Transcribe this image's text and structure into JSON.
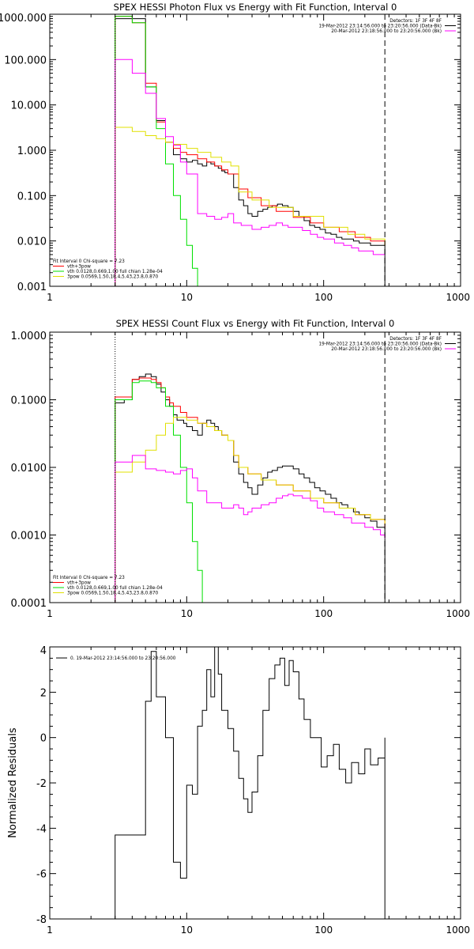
{
  "chart_data": [
    {
      "type": "line",
      "title": "SPEX HESSI Photon Flux vs Energy with Fit Function, Interval 0",
      "xscale": "log",
      "yscale": "log",
      "xlim": [
        1,
        1000
      ],
      "ylim": [
        0.001,
        1000
      ],
      "x_ticks": [
        "1",
        "10",
        "100",
        "1000"
      ],
      "y_ticks": [
        "0.001",
        "0.010",
        "0.100",
        "1.000",
        "10.000",
        "100.000",
        "1000.000"
      ],
      "vlines": [
        {
          "x": 3,
          "style": "dotted"
        },
        {
          "x": 280,
          "style": "dashed"
        }
      ],
      "info": [
        "Detectors: 1F 3F 4F 8F",
        "19-Mar-2012 23:14:56.000 to 23:20:56.000 (Data-Bk)",
        "20-Mar-2012 23:18:56.000 to 23:20:56.000 (Bk)"
      ],
      "legend_title": "Fit Interval 0   Chi-square = 7.23",
      "legend_entries": [
        "vth+3pow",
        "vth 0.0128,0.669,1.00  full chian 1.28e-04",
        "3pow 0.0569,1.50,18.4,5.43,23.8,0.870"
      ],
      "colors": {
        "data": "#000000",
        "total": "#ff0000",
        "vth": "#00e000",
        "pow": "#e0e000",
        "bk": "#ff00ff"
      },
      "series": [
        {
          "name": "19-Mar-2012 23:14:56.000 to 23:20:56.000 (Data-Bk)",
          "x": [
            3,
            4,
            5,
            6,
            7,
            8,
            9,
            10,
            11,
            12,
            13,
            14,
            15,
            16,
            17,
            18,
            19,
            20,
            22,
            24,
            26,
            28,
            30,
            33,
            36,
            39,
            42,
            46,
            50,
            55,
            60,
            66,
            72,
            79,
            86,
            94,
            103,
            113,
            124,
            136,
            150,
            165,
            182,
            200,
            220,
            245,
            280
          ],
          "y": [
            800,
            800,
            25,
            4.5,
            1.5,
            0.8,
            0.65,
            0.55,
            0.6,
            0.5,
            0.45,
            0.55,
            0.5,
            0.45,
            0.4,
            0.35,
            0.32,
            0.3,
            0.15,
            0.08,
            0.06,
            0.04,
            0.035,
            0.045,
            0.05,
            0.055,
            0.06,
            0.065,
            0.06,
            0.055,
            0.045,
            0.035,
            0.028,
            0.022,
            0.02,
            0.018,
            0.015,
            0.014,
            0.012,
            0.011,
            0.011,
            0.01,
            0.009,
            0.009,
            0.008,
            0.008,
            0.008
          ]
        },
        {
          "name": "vth+3pow",
          "x": [
            3,
            4,
            5,
            6,
            7,
            8,
            9,
            10,
            12,
            14,
            16,
            18,
            20,
            24,
            28,
            35,
            45,
            60,
            80,
            100,
            130,
            170,
            220,
            280
          ],
          "y": [
            900,
            650,
            30,
            4.2,
            1.5,
            1.1,
            0.9,
            0.8,
            0.65,
            0.55,
            0.45,
            0.37,
            0.3,
            0.14,
            0.09,
            0.06,
            0.045,
            0.033,
            0.025,
            0.02,
            0.016,
            0.012,
            0.01,
            0.008
          ]
        },
        {
          "name": "vth 0.0128,0.669,1.00",
          "x": [
            3,
            4,
            5,
            6,
            7,
            8,
            9,
            10,
            11,
            12
          ],
          "y": [
            900,
            650,
            25,
            3.0,
            0.5,
            0.1,
            0.03,
            0.008,
            0.0025,
            0.0008
          ]
        },
        {
          "name": "3pow 0.0569,1.50,18.4,5.43,23.8,0.870",
          "x": [
            3,
            4,
            5,
            6,
            7,
            8,
            10,
            12,
            15,
            18,
            21,
            24,
            30,
            40,
            60,
            100,
            150,
            200,
            280
          ],
          "y": [
            3.2,
            2.6,
            2.1,
            1.8,
            1.5,
            1.35,
            1.1,
            0.9,
            0.7,
            0.55,
            0.45,
            0.12,
            0.08,
            0.055,
            0.035,
            0.02,
            0.014,
            0.011,
            0.008
          ]
        },
        {
          "name": "20-Mar-2012 23:18:56.000 to 23:20:56.000 (Bk)",
          "x": [
            3,
            4,
            5,
            6,
            7,
            8,
            9,
            10,
            12,
            14,
            16,
            18,
            20,
            22,
            25,
            30,
            35,
            40,
            45,
            50,
            55,
            60,
            70,
            80,
            90,
            100,
            120,
            140,
            160,
            180,
            200,
            230,
            260,
            280
          ],
          "y": [
            100,
            50,
            18,
            5,
            2.0,
            1.3,
            0.55,
            0.3,
            0.04,
            0.035,
            0.03,
            0.033,
            0.04,
            0.025,
            0.022,
            0.018,
            0.02,
            0.022,
            0.025,
            0.022,
            0.02,
            0.02,
            0.017,
            0.014,
            0.012,
            0.011,
            0.009,
            0.008,
            0.007,
            0.006,
            0.006,
            0.005,
            0.005,
            0.005
          ]
        }
      ]
    },
    {
      "type": "line",
      "title": "SPEX HESSI Count Flux vs Energy with Fit Function, Interval 0",
      "xscale": "log",
      "yscale": "log",
      "xlim": [
        1,
        1000
      ],
      "ylim": [
        0.0001,
        1
      ],
      "x_ticks": [
        "1",
        "10",
        "100",
        "1000"
      ],
      "y_ticks": [
        "0.0001",
        "0.0010",
        "0.0100",
        "0.1000",
        "1.0000"
      ],
      "vlines": [
        {
          "x": 3,
          "style": "dotted"
        },
        {
          "x": 280,
          "style": "dashed"
        }
      ],
      "info": [
        "Detectors: 1F 3F 4F 8F",
        "19-Mar-2012 23:14:56.000 to 23:20:56.000 (Data-Bk)",
        "20-Mar-2012 23:18:56.000 to 23:20:56.000 (Bk)"
      ],
      "legend_title": "Fit Interval 0   Chi-square = 7.23",
      "legend_entries": [
        "vth+3pow",
        "vth 0.0128,0.669,1.00  full chian 1.28e-04",
        "3pow 0.0569,1.50,18.4,5.43,23.8,0.870"
      ],
      "colors": {
        "data": "#000000",
        "total": "#ff0000",
        "vth": "#00e000",
        "pow": "#e0e000",
        "bk": "#ff00ff"
      },
      "series": [
        {
          "name": "19-Mar-2012 23:14:56.000 to 23:20:56.000 (Data-Bk)",
          "x": [
            3,
            3.5,
            4,
            4.5,
            5,
            5.5,
            6,
            6.5,
            7,
            7.5,
            8,
            8.5,
            9,
            9.5,
            10,
            11,
            12,
            13,
            14,
            15,
            16,
            17,
            18,
            19,
            20,
            22,
            24,
            26,
            28,
            30,
            33,
            36,
            39,
            42,
            46,
            50,
            55,
            60,
            66,
            72,
            79,
            86,
            94,
            103,
            113,
            124,
            136,
            150,
            165,
            182,
            200,
            220,
            245,
            280
          ],
          "y": [
            0.09,
            0.1,
            0.2,
            0.22,
            0.24,
            0.22,
            0.17,
            0.13,
            0.1,
            0.08,
            0.06,
            0.05,
            0.05,
            0.045,
            0.04,
            0.035,
            0.03,
            0.045,
            0.05,
            0.045,
            0.04,
            0.035,
            0.03,
            0.03,
            0.025,
            0.012,
            0.008,
            0.006,
            0.005,
            0.004,
            0.0055,
            0.007,
            0.0085,
            0.009,
            0.01,
            0.0105,
            0.0105,
            0.0095,
            0.008,
            0.007,
            0.006,
            0.005,
            0.0045,
            0.004,
            0.0035,
            0.003,
            0.0028,
            0.0025,
            0.0022,
            0.002,
            0.0018,
            0.0016,
            0.0013,
            0.001
          ]
        },
        {
          "name": "vth+3pow",
          "x": [
            3,
            3.5,
            4,
            4.5,
            5,
            5.5,
            6,
            6.5,
            7,
            7.5,
            8,
            9,
            10,
            12,
            14,
            16,
            18,
            20,
            22,
            24,
            28,
            35,
            45,
            60,
            80,
            100,
            130,
            170,
            220,
            280
          ],
          "y": [
            0.11,
            0.11,
            0.2,
            0.21,
            0.21,
            0.2,
            0.18,
            0.15,
            0.11,
            0.09,
            0.08,
            0.065,
            0.055,
            0.045,
            0.04,
            0.035,
            0.03,
            0.025,
            0.015,
            0.01,
            0.008,
            0.0065,
            0.0055,
            0.0045,
            0.0035,
            0.003,
            0.0025,
            0.002,
            0.0017,
            0.0013
          ]
        },
        {
          "name": "vth 0.0128,0.669,1.00",
          "x": [
            3,
            3.5,
            4,
            4.5,
            5,
            5.5,
            6,
            7,
            8,
            9,
            10,
            11,
            12,
            13
          ],
          "y": [
            0.1,
            0.1,
            0.18,
            0.19,
            0.19,
            0.18,
            0.15,
            0.08,
            0.03,
            0.01,
            0.003,
            0.0008,
            0.0003,
            0.0001
          ]
        },
        {
          "name": "3pow 0.0569,1.50,18.4,5.43,23.8,0.870",
          "x": [
            3,
            4,
            5,
            6,
            7,
            8,
            9,
            10,
            12,
            14,
            16,
            18,
            20,
            22,
            24,
            28,
            35,
            45,
            60,
            80,
            100,
            130,
            170,
            220,
            280
          ],
          "y": [
            0.0085,
            0.012,
            0.018,
            0.03,
            0.045,
            0.055,
            0.055,
            0.05,
            0.045,
            0.04,
            0.035,
            0.03,
            0.025,
            0.015,
            0.01,
            0.008,
            0.0065,
            0.0055,
            0.0045,
            0.0035,
            0.003,
            0.0025,
            0.002,
            0.0017,
            0.0014
          ]
        },
        {
          "name": "20-Mar-2012 23:18:56.000 to 23:20:56.000 (Bk)",
          "x": [
            3,
            4,
            5,
            6,
            7,
            8,
            9,
            10,
            11,
            12,
            14,
            16,
            18,
            20,
            22,
            24,
            26,
            28,
            30,
            35,
            40,
            45,
            50,
            55,
            60,
            70,
            80,
            90,
            100,
            120,
            140,
            160,
            180,
            200,
            230,
            260,
            280
          ],
          "y": [
            0.012,
            0.015,
            0.0095,
            0.009,
            0.0085,
            0.008,
            0.009,
            0.0095,
            0.007,
            0.0045,
            0.003,
            0.003,
            0.0025,
            0.0025,
            0.0028,
            0.0025,
            0.002,
            0.0022,
            0.0025,
            0.0028,
            0.003,
            0.0035,
            0.0038,
            0.004,
            0.0038,
            0.0035,
            0.0032,
            0.0025,
            0.0022,
            0.002,
            0.0018,
            0.0015,
            0.0015,
            0.0013,
            0.0012,
            0.001,
            0.0009
          ]
        }
      ]
    },
    {
      "type": "line",
      "title": "",
      "xscale": "log",
      "yscale": "linear",
      "xlim": [
        1,
        1000
      ],
      "ylim": [
        -8,
        4
      ],
      "x_ticks": [
        "1",
        "10",
        "100",
        "1000"
      ],
      "y_ticks": [
        "-8",
        "-6",
        "-4",
        "-2",
        "0",
        "2",
        "4"
      ],
      "ylabel": "Normalized Residuals",
      "legend_entries": [
        "0. 19-Mar-2012 23:14:56.000 to 23:20:56.000"
      ],
      "colors": {
        "residuals": "#000000"
      },
      "series": [
        {
          "name": "0. 19-Mar-2012 23:14:56.000 to 23:20:56.000",
          "x": [
            3,
            4,
            5,
            5.5,
            6,
            7,
            8,
            9,
            10,
            11,
            12,
            13,
            14,
            15,
            16,
            17,
            18,
            20,
            22,
            24,
            26,
            28,
            30,
            33,
            36,
            40,
            44,
            48,
            52,
            56,
            60,
            66,
            72,
            80,
            88,
            96,
            106,
            118,
            130,
            145,
            160,
            180,
            200,
            220,
            250,
            280
          ],
          "y": [
            -4.3,
            -4.3,
            1.6,
            3.8,
            1.8,
            0,
            -5.5,
            -6.2,
            -2.1,
            -2.5,
            0.5,
            1.2,
            3.0,
            1.8,
            4.0,
            2.8,
            1.2,
            0.4,
            -0.6,
            -1.8,
            -2.7,
            -3.3,
            -2.4,
            -0.8,
            1.2,
            2.6,
            3.2,
            3.5,
            2.3,
            3.4,
            2.9,
            1.7,
            0.8,
            0,
            0,
            -1.3,
            -0.8,
            -0.3,
            -1.4,
            -2.0,
            -1.1,
            -1.6,
            -0.5,
            -1.2,
            -0.9,
            0
          ]
        }
      ]
    }
  ]
}
